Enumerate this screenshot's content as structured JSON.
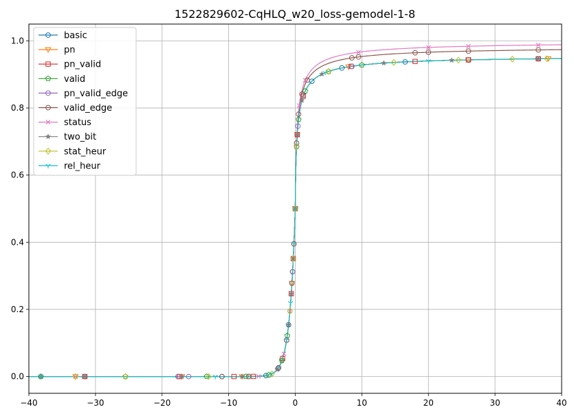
{
  "chart_data": {
    "type": "line",
    "title": "1522829602-CqHLQ_w20_loss-gemodel-1-8",
    "xlabel": "",
    "ylabel": "",
    "xlim": [
      -40,
      40
    ],
    "ylim": [
      -0.05,
      1.05
    ],
    "xticks": [
      -40,
      -30,
      -20,
      -10,
      0,
      10,
      20,
      30,
      40
    ],
    "xtick_labels": [
      "−40",
      "−30",
      "−20",
      "−10",
      "0",
      "10",
      "20",
      "30",
      "40"
    ],
    "yticks": [
      0.0,
      0.2,
      0.4,
      0.6,
      0.8,
      1.0
    ],
    "ytick_labels": [
      "0.0",
      "0.2",
      "0.4",
      "0.6",
      "0.8",
      "1.0"
    ],
    "grid": true,
    "legend_position": "top-left",
    "series": [
      {
        "name": "basic",
        "color": "#1f77b4",
        "marker": "circle",
        "asymptote": 0.958,
        "markers_x": [
          -38.2,
          -31.6,
          -17.6,
          -11.0,
          -4.4,
          -2.6,
          -1.0,
          -0.3,
          0.0,
          0.3,
          2.5,
          7.0,
          16.5,
          26.0,
          36.5
        ]
      },
      {
        "name": "pn",
        "color": "#ff7f0e",
        "marker": "triangle-down",
        "asymptote": 0.958,
        "markers_x": [
          -33.0,
          -17.0,
          -8.0,
          -2.0,
          -0.5,
          0.0,
          0.3,
          1.2,
          8.0,
          26.0,
          38.0
        ]
      },
      {
        "name": "pn_valid",
        "color": "#d62728",
        "marker": "square",
        "asymptote": 0.958,
        "markers_x": [
          -31.6,
          -17.4,
          -9.2,
          -6.3,
          -1.9,
          -0.6,
          -0.3,
          0.0,
          0.3,
          1.2,
          8.4,
          18.0,
          26.0,
          36.5
        ]
      },
      {
        "name": "valid",
        "color": "#2ca02c",
        "marker": "pentagon",
        "asymptote": 0.958,
        "markers_x": [
          -38.2,
          -25.5,
          -13.3,
          -7.4,
          -4.0,
          -2.0,
          -1.2,
          -0.4,
          0.0,
          0.2,
          0.5,
          1.5,
          5.0,
          10.0
        ]
      },
      {
        "name": "pn_valid_edge",
        "color": "#9467bd",
        "marker": "circle",
        "asymptote": 0.958,
        "markers_x": [
          -16.0,
          -7.0,
          -1.3,
          -0.4,
          -0.2,
          0.0,
          0.2,
          0.4,
          1.2,
          8.5
        ]
      },
      {
        "name": "valid_edge",
        "color": "#8c564b",
        "marker": "circle",
        "asymptote": 0.985,
        "markers_x": [
          -11.0,
          -7.0,
          -2.5,
          -1.3,
          -0.5,
          -0.2,
          0.0,
          0.2,
          0.5,
          1.0,
          1.8,
          8.5,
          9.5,
          18.0,
          20.0,
          26.0,
          36.5
        ]
      },
      {
        "name": "status",
        "color": "#e377c2",
        "marker": "x",
        "asymptote": 1.0,
        "markers_x": [
          -33.0,
          -17.5,
          -5.5,
          -1.7,
          -0.8,
          -0.3,
          0.0,
          0.6,
          1.5,
          9.5,
          20.0,
          26.0,
          36.5
        ]
      },
      {
        "name": "two_bit",
        "color": "#7f7f7f",
        "marker": "star",
        "asymptote": 0.958,
        "markers_x": [
          -38.2,
          -31.6,
          -17.0,
          -8.0,
          -2.7,
          -1.0,
          -0.6,
          -0.3,
          0.0,
          0.3,
          1.0,
          4.0,
          13.3,
          23.5,
          36.5
        ]
      },
      {
        "name": "stat_heur",
        "color": "#bcbd22",
        "marker": "diamond",
        "asymptote": 0.958,
        "markers_x": [
          -33.0,
          -25.5,
          -13.0,
          -3.5,
          -0.8,
          -0.3,
          0.0,
          0.2,
          5.0,
          14.8,
          24.5,
          32.6,
          37.8
        ]
      },
      {
        "name": "rel_heur",
        "color": "#17becf",
        "marker": "tri-down",
        "asymptote": 0.958,
        "markers_x": [
          -38.2,
          -12.0,
          -3.5,
          -2.0,
          -1.3,
          -0.7,
          -0.2,
          0.0,
          4.5,
          20.0
        ]
      }
    ]
  }
}
